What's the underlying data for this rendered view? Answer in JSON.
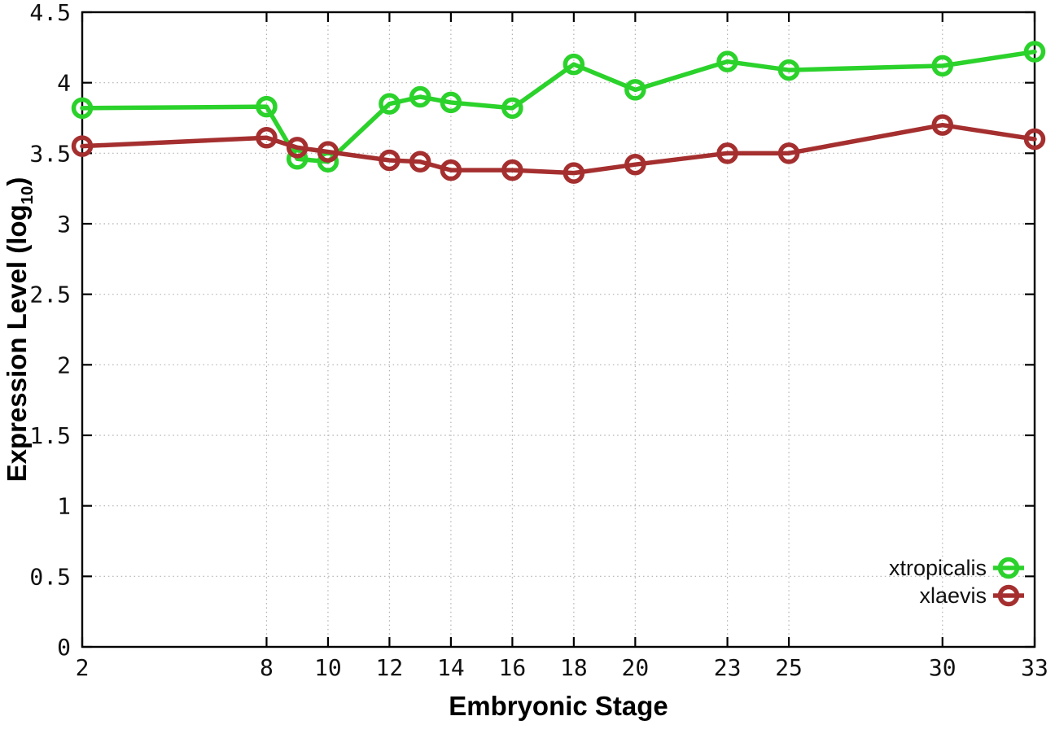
{
  "chart_data": {
    "type": "line",
    "title": "",
    "xlabel": "Embryonic Stage",
    "ylabel": "Expression Level (log10)",
    "ylabel_parts": {
      "main": "Expression Level (log",
      "sub": "10",
      "close": ")"
    },
    "x": [
      2,
      8,
      9,
      10,
      12,
      13,
      14,
      16,
      18,
      20,
      23,
      25,
      30,
      33
    ],
    "series": [
      {
        "name": "xtropicalis",
        "color": "#2bd22b",
        "marker": "open-circle",
        "values": [
          3.82,
          3.83,
          3.46,
          3.44,
          3.85,
          3.9,
          3.86,
          3.82,
          4.13,
          3.95,
          4.15,
          4.09,
          4.12,
          4.22
        ]
      },
      {
        "name": "xlaevis",
        "color": "#a52f2f",
        "marker": "open-circle",
        "values": [
          3.55,
          3.61,
          3.54,
          3.51,
          3.45,
          3.44,
          3.38,
          3.38,
          3.36,
          3.42,
          3.5,
          3.5,
          3.7,
          3.6
        ]
      }
    ],
    "xlim": [
      2,
      33
    ],
    "ylim": [
      0,
      4.5
    ],
    "x_ticks": [
      2,
      8,
      10,
      12,
      14,
      16,
      18,
      20,
      23,
      25,
      30,
      33
    ],
    "x_tick_labels": [
      "2",
      "8",
      "10",
      "12",
      "14",
      "16",
      "18",
      "20",
      "23",
      "25",
      "30",
      "33"
    ],
    "y_ticks": [
      0,
      0.5,
      1,
      1.5,
      2,
      2.5,
      3,
      3.5,
      4,
      4.5
    ],
    "y_tick_labels": [
      "0",
      "0.5",
      "1",
      "1.5",
      "2",
      "2.5",
      "3",
      "3.5",
      "4",
      "4.5"
    ],
    "grid": true,
    "grid_style": "dotted",
    "legend_position": "inside-bottom-right",
    "legend": [
      "xtropicalis",
      "xlaevis"
    ]
  },
  "colors": {
    "background": "#ffffff",
    "border": "#000000",
    "grid": "#b0b0b0",
    "tick_text": "#111111",
    "series_xtropicalis": "#2bd22b",
    "series_xlaevis": "#a52f2f"
  }
}
